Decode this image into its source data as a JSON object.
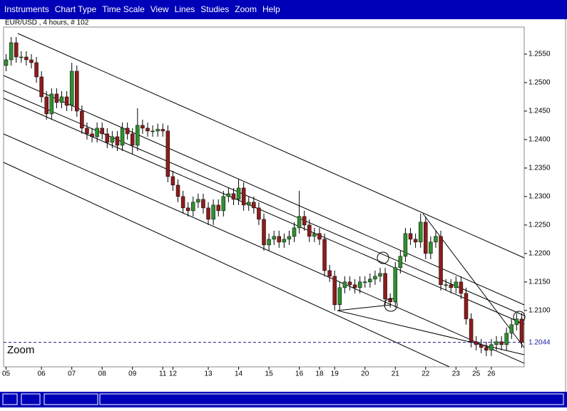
{
  "menu": [
    "Instruments",
    "Chart Type",
    "Time Scale",
    "View",
    "Lines",
    "Studies",
    "Zoom",
    "Help"
  ],
  "chart_data": {
    "type": "candlestick",
    "title": "EUR/USD , 4 hours, # 102",
    "annotation": "Zoom",
    "up_color": "#2f8f2f",
    "down_color": "#8c1c1c",
    "categories": [
      "05",
      null,
      null,
      null,
      null,
      null,
      null,
      "06",
      null,
      null,
      null,
      null,
      null,
      "07",
      null,
      null,
      null,
      null,
      null,
      "08",
      null,
      null,
      null,
      null,
      null,
      "09",
      null,
      null,
      null,
      null,
      null,
      "11",
      null,
      "12",
      null,
      null,
      null,
      null,
      null,
      null,
      "13",
      null,
      null,
      null,
      null,
      null,
      "14",
      null,
      null,
      null,
      null,
      null,
      "15",
      null,
      null,
      null,
      null,
      null,
      "16",
      null,
      null,
      null,
      "18",
      null,
      null,
      "19",
      null,
      null,
      null,
      null,
      null,
      "20",
      null,
      null,
      null,
      null,
      null,
      "21",
      null,
      null,
      null,
      null,
      null,
      "22",
      null,
      null,
      null,
      null,
      null,
      "23",
      null,
      null,
      null,
      "25",
      null,
      null,
      "26",
      null,
      null,
      null,
      null,
      null,
      null
    ],
    "open": [
      1.253,
      1.254,
      1.257,
      1.2545,
      1.2545,
      1.254,
      1.2535,
      1.251,
      1.2475,
      1.2445,
      1.248,
      1.2465,
      1.2475,
      1.246,
      1.252,
      1.245,
      1.242,
      1.241,
      1.2405,
      1.242,
      1.241,
      1.2395,
      1.2405,
      1.239,
      1.242,
      1.241,
      1.239,
      1.2425,
      1.242,
      1.2415,
      1.2415,
      1.2418,
      1.2415,
      1.2335,
      1.232,
      1.23,
      1.228,
      1.2275,
      1.229,
      1.2295,
      1.228,
      1.226,
      1.2285,
      1.2275,
      1.23,
      1.2305,
      1.2295,
      1.2315,
      1.2285,
      1.229,
      1.228,
      1.226,
      1.2215,
      1.2225,
      1.223,
      1.222,
      1.2225,
      1.223,
      1.2245,
      1.2265,
      1.225,
      1.223,
      1.2235,
      1.2225,
      1.217,
      1.216,
      1.211,
      1.214,
      1.215,
      1.2145,
      1.214,
      1.215,
      1.215,
      1.2155,
      1.216,
      1.2165,
      1.212,
      1.2115,
      1.2175,
      1.2195,
      1.2235,
      1.2225,
      1.222,
      1.2255,
      1.22,
      1.222,
      1.223,
      1.2145,
      1.2145,
      1.214,
      1.215,
      1.213,
      1.2085,
      1.2045,
      1.204,
      1.2035,
      1.203,
      1.204,
      1.2045,
      1.204,
      1.206,
      1.2075,
      1.2085
    ],
    "high": [
      1.255,
      1.258,
      1.258,
      1.2555,
      1.2555,
      1.255,
      1.2545,
      1.252,
      1.2485,
      1.249,
      1.249,
      1.2485,
      1.2485,
      1.2535,
      1.253,
      1.246,
      1.243,
      1.242,
      1.243,
      1.243,
      1.242,
      1.2415,
      1.2415,
      1.243,
      1.243,
      1.242,
      1.2455,
      1.2435,
      1.243,
      1.2425,
      1.2428,
      1.2428,
      1.2425,
      1.2345,
      1.233,
      1.231,
      1.229,
      1.23,
      1.2305,
      1.2305,
      1.229,
      1.2295,
      1.2295,
      1.231,
      1.2315,
      1.2315,
      1.233,
      1.2325,
      1.23,
      1.23,
      1.229,
      1.227,
      1.2235,
      1.224,
      1.224,
      1.2235,
      1.224,
      1.2255,
      1.231,
      1.2275,
      1.226,
      1.2245,
      1.2245,
      1.2235,
      1.218,
      1.217,
      1.215,
      1.216,
      1.216,
      1.2155,
      1.216,
      1.216,
      1.2165,
      1.217,
      1.2175,
      1.2175,
      1.213,
      1.2185,
      1.2205,
      1.2245,
      1.2245,
      1.2235,
      1.227,
      1.2265,
      1.223,
      1.224,
      1.224,
      1.2155,
      1.2155,
      1.216,
      1.216,
      1.214,
      1.2095,
      1.2055,
      1.205,
      1.2045,
      1.205,
      1.2055,
      1.2055,
      1.207,
      1.2085,
      1.2095,
      1.2095
    ],
    "low": [
      1.252,
      1.253,
      1.2535,
      1.2535,
      1.253,
      1.2525,
      1.25,
      1.2465,
      1.2435,
      1.2435,
      1.2455,
      1.2455,
      1.245,
      1.245,
      1.244,
      1.241,
      1.24,
      1.2395,
      1.2395,
      1.24,
      1.2385,
      1.2385,
      1.238,
      1.238,
      1.24,
      1.2375,
      1.238,
      1.241,
      1.2405,
      1.2405,
      1.2405,
      1.2405,
      1.2325,
      1.231,
      1.229,
      1.227,
      1.2265,
      1.2265,
      1.228,
      1.227,
      1.225,
      1.225,
      1.2265,
      1.2265,
      1.229,
      1.2285,
      1.2285,
      1.2275,
      1.2275,
      1.227,
      1.225,
      1.2205,
      1.2205,
      1.2215,
      1.221,
      1.221,
      1.2215,
      1.222,
      1.2235,
      1.224,
      1.222,
      1.222,
      1.2215,
      1.216,
      1.215,
      1.21,
      1.21,
      1.213,
      1.2135,
      1.213,
      1.213,
      1.214,
      1.214,
      1.2145,
      1.215,
      1.211,
      1.2105,
      1.2105,
      1.2165,
      1.2185,
      1.2215,
      1.221,
      1.221,
      1.219,
      1.219,
      1.221,
      1.2135,
      1.2135,
      1.213,
      1.213,
      1.212,
      1.2075,
      1.2035,
      1.203,
      1.2025,
      1.202,
      1.202,
      1.203,
      1.203,
      1.203,
      1.205,
      1.2065,
      1.2034
    ],
    "close": [
      1.254,
      1.257,
      1.2545,
      1.2545,
      1.254,
      1.2535,
      1.251,
      1.2475,
      1.2445,
      1.248,
      1.2465,
      1.2475,
      1.246,
      1.252,
      1.245,
      1.242,
      1.241,
      1.2405,
      1.242,
      1.241,
      1.2395,
      1.2405,
      1.239,
      1.242,
      1.241,
      1.239,
      1.2425,
      1.242,
      1.2415,
      1.2415,
      1.2418,
      1.2415,
      1.2335,
      1.232,
      1.23,
      1.228,
      1.2275,
      1.229,
      1.2295,
      1.228,
      1.226,
      1.2285,
      1.2275,
      1.23,
      1.2305,
      1.2295,
      1.2315,
      1.2285,
      1.229,
      1.228,
      1.226,
      1.2215,
      1.2225,
      1.223,
      1.222,
      1.2225,
      1.223,
      1.2245,
      1.2265,
      1.225,
      1.223,
      1.2235,
      1.2225,
      1.217,
      1.216,
      1.211,
      1.214,
      1.215,
      1.2145,
      1.214,
      1.215,
      1.215,
      1.2155,
      1.216,
      1.2165,
      1.212,
      1.2115,
      1.2175,
      1.2195,
      1.2235,
      1.2225,
      1.222,
      1.2255,
      1.22,
      1.222,
      1.223,
      1.2145,
      1.2145,
      1.214,
      1.215,
      1.213,
      1.2085,
      1.2045,
      1.204,
      1.2035,
      1.203,
      1.204,
      1.2045,
      1.204,
      1.206,
      1.2075,
      1.2085,
      1.2044
    ],
    "ylim": [
      1.2001,
      1.25975
    ],
    "yticks": [
      {
        "value": 1.21,
        "label": "1.2100"
      },
      {
        "value": 1.215,
        "label": "1.2150"
      },
      {
        "value": 1.22,
        "label": "1.2200"
      },
      {
        "value": 1.225,
        "label": "1.2250"
      },
      {
        "value": 1.23,
        "label": "1.2300"
      },
      {
        "value": 1.235,
        "label": "1.2350"
      },
      {
        "value": 1.24,
        "label": "1.2400"
      },
      {
        "value": 1.245,
        "label": "1.2450"
      },
      {
        "value": 1.25,
        "label": "1.2500"
      },
      {
        "value": 1.255,
        "label": "1.2550"
      }
    ],
    "last_price": {
      "value": 1.2044,
      "label": "1.2044"
    },
    "last_price_color": "#1a1aa0"
  }
}
